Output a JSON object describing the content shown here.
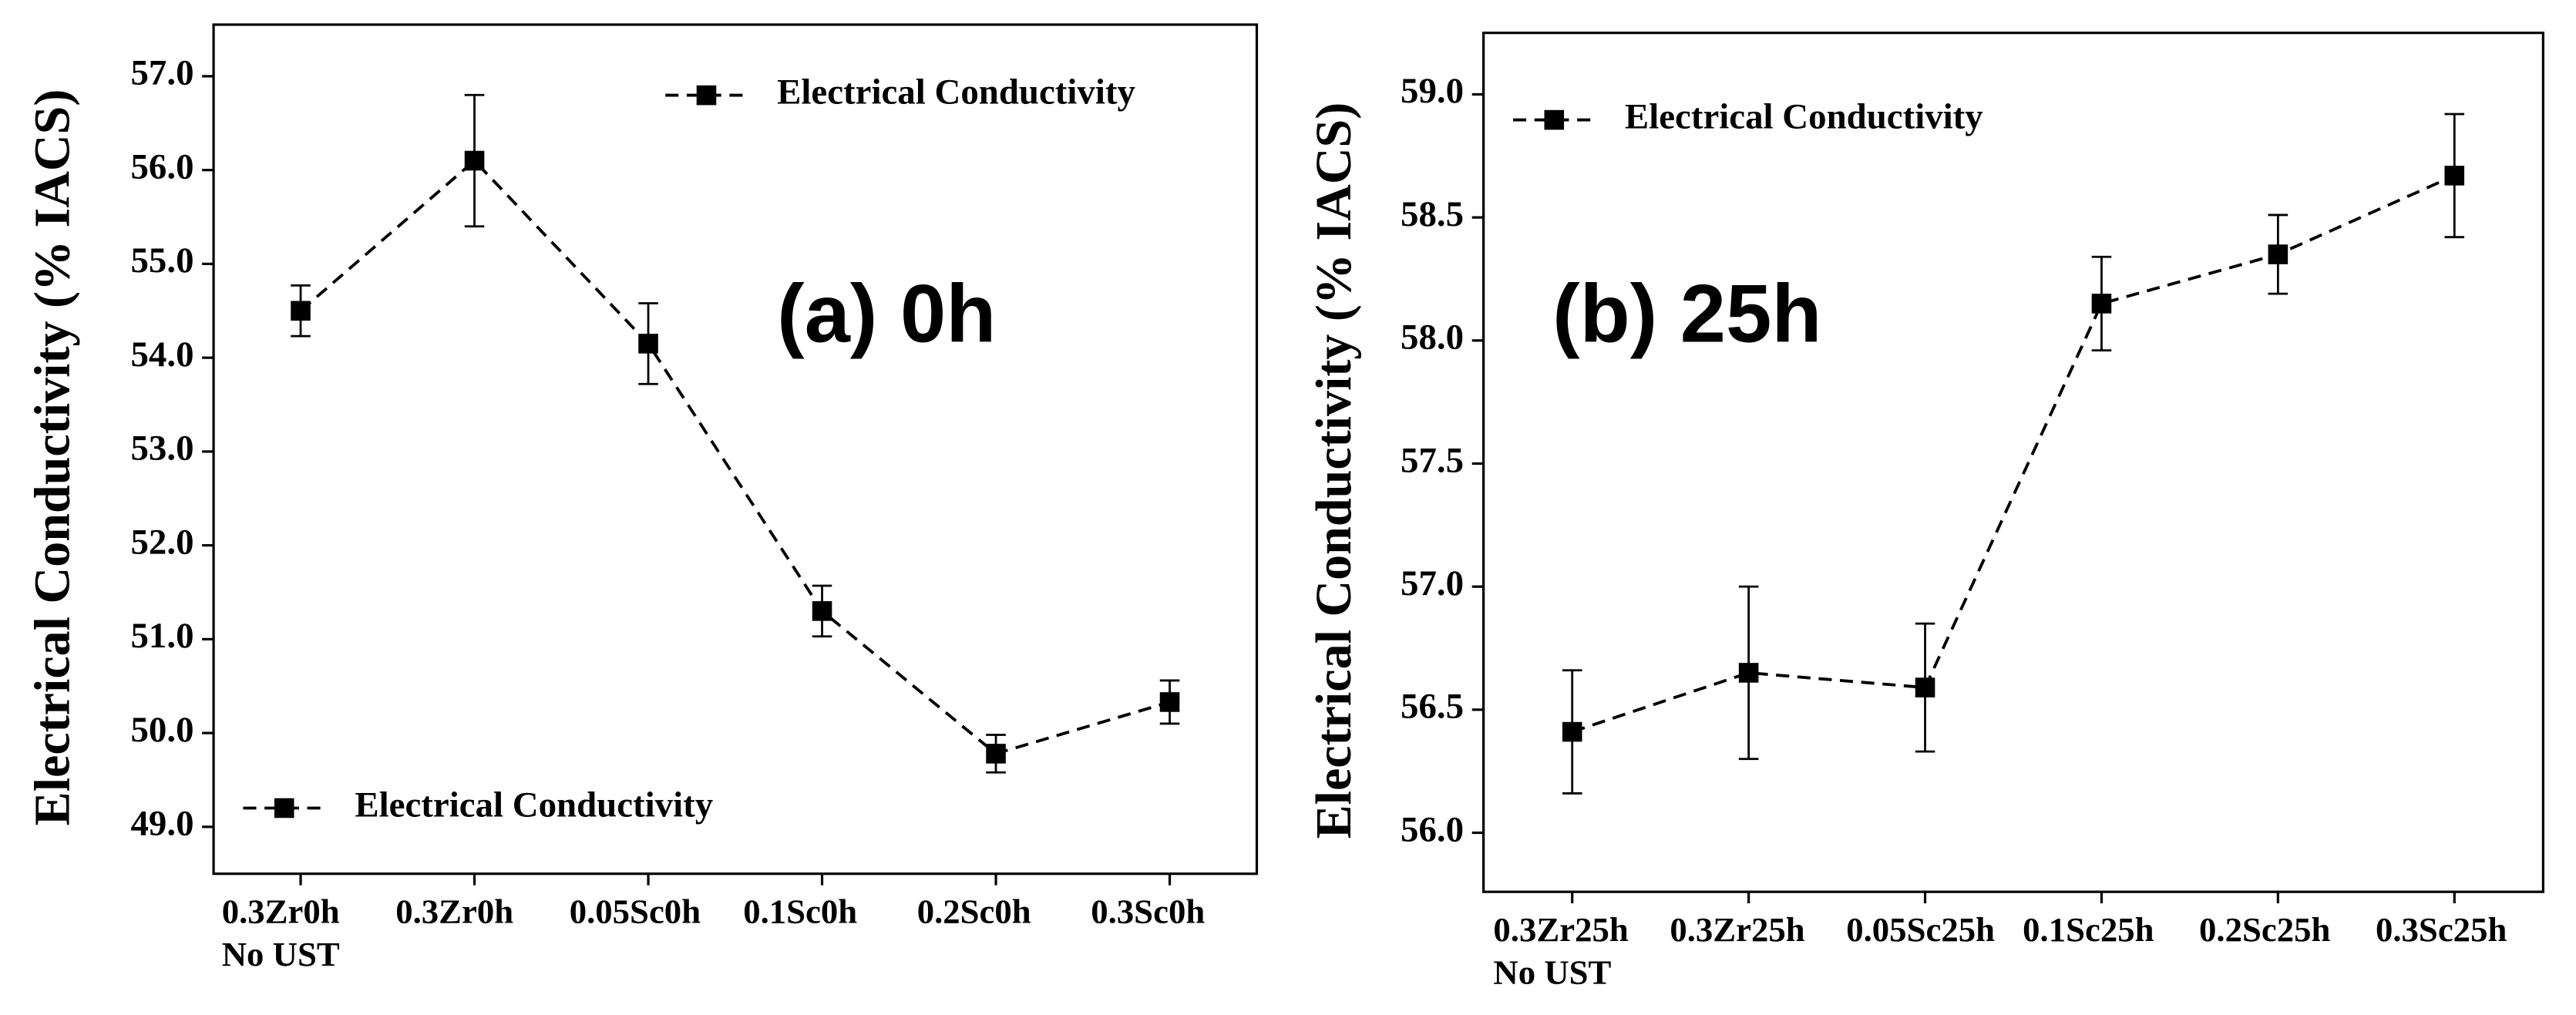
{
  "chart_data": [
    {
      "type": "line",
      "annotation": "(a) 0h",
      "ylabel": "Electrical Conductivity (% IACS)",
      "categories": [
        "0.3Zr0h\nNo UST",
        "0.3Zr0h",
        "0.05Sc0h",
        "0.1Sc0h",
        "0.2Sc0h",
        "0.3Sc0h"
      ],
      "series": [
        {
          "name": "Electrical Conductivity",
          "color": "#000000",
          "values": [
            54.5,
            56.1,
            54.15,
            51.3,
            49.78,
            50.33
          ],
          "errors": [
            0.27,
            0.7,
            0.43,
            0.27,
            0.2,
            0.23
          ]
        }
      ],
      "ylim": [
        48.5,
        57.55
      ],
      "yticks": [
        {
          "value": 49,
          "label": "49.0"
        },
        {
          "value": 50,
          "label": "50.0"
        },
        {
          "value": 51,
          "label": "51.0"
        },
        {
          "value": 52,
          "label": "52.0"
        },
        {
          "value": 53,
          "label": "53.0"
        },
        {
          "value": 54,
          "label": "54.0"
        },
        {
          "value": 55,
          "label": "55.0"
        },
        {
          "value": 56,
          "label": "56.0"
        },
        {
          "value": 57,
          "label": "57.0"
        }
      ],
      "legend": [
        "upper right",
        "lower left"
      ]
    },
    {
      "type": "line",
      "annotation": "(b) 25h",
      "ylabel": "Electrical Conductivity (% IACS)",
      "categories": [
        "0.3Zr25h\nNo UST",
        "0.3Zr25h",
        "0.05Sc25h",
        "0.1Sc25h",
        "0.2Sc25h",
        "0.3Sc25h"
      ],
      "series": [
        {
          "name": "Electrical Conductivity",
          "color": "#000000",
          "values": [
            56.41,
            56.65,
            56.59,
            58.15,
            58.35,
            58.67
          ],
          "errors": [
            0.25,
            0.35,
            0.26,
            0.19,
            0.16,
            0.25
          ]
        }
      ],
      "ylim": [
        55.76,
        59.25
      ],
      "yticks": [
        {
          "value": 56,
          "label": "56.0"
        },
        56.5,
        {
          "value": 57,
          "label": "57.0"
        },
        57.5,
        {
          "value": 58,
          "label": "58.0"
        },
        58.5,
        {
          "value": 59,
          "label": "59.0"
        }
      ],
      "legend": [
        "upper left"
      ]
    }
  ]
}
